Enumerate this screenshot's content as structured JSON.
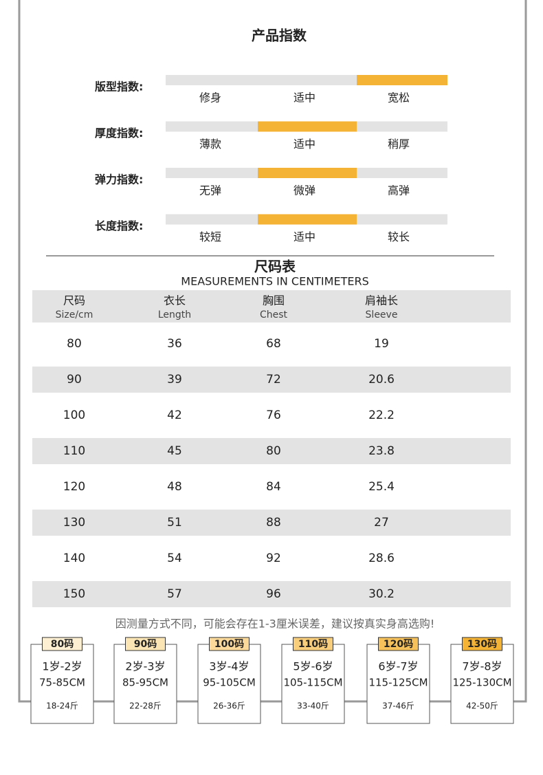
{
  "header": {
    "title": "产品指数"
  },
  "indices": [
    {
      "label": "版型指数:",
      "options": [
        "修身",
        "适中",
        "宽松"
      ],
      "selected": 2
    },
    {
      "label": "厚度指数:",
      "options": [
        "薄款",
        "适中",
        "稍厚"
      ],
      "selected": 1
    },
    {
      "label": "弹力指数:",
      "options": [
        "无弹",
        "微弹",
        "高弹"
      ],
      "selected": 1
    },
    {
      "label": "长度指数:",
      "options": [
        "较短",
        "适中",
        "较长"
      ],
      "selected": 1
    }
  ],
  "size_table": {
    "title": "尺码表",
    "subtitle": "MEASUREMENTS IN CENTIMETERS",
    "columns": [
      {
        "zh": "尺码",
        "en": "Size/cm"
      },
      {
        "zh": "衣长",
        "en": "Length"
      },
      {
        "zh": "胸围",
        "en": "Chest"
      },
      {
        "zh": "肩袖长",
        "en": "Sleeve"
      }
    ],
    "rows": [
      [
        80,
        36,
        68,
        19
      ],
      [
        90,
        39,
        72,
        20.6
      ],
      [
        100,
        42,
        76,
        22.2
      ],
      [
        110,
        45,
        80,
        23.8
      ],
      [
        120,
        48,
        84,
        25.4
      ],
      [
        130,
        51,
        88,
        27
      ],
      [
        140,
        54,
        92,
        28.6
      ],
      [
        150,
        57,
        96,
        30.2
      ]
    ]
  },
  "note": "因测量方式不同，可能会存在1-3厘米误差，建议按真实身高选购!",
  "cards": [
    {
      "tag": "80码",
      "age": "1岁-2岁",
      "height": "75-85CM",
      "weight": "18-24斤"
    },
    {
      "tag": "90码",
      "age": "2岁-3岁",
      "height": "85-95CM",
      "weight": "22-28斤"
    },
    {
      "tag": "100码",
      "age": "3岁-4岁",
      "height": "95-105CM",
      "weight": "26-36斤"
    },
    {
      "tag": "110码",
      "age": "5岁-6岁",
      "height": "105-115CM",
      "weight": "33-40斤"
    },
    {
      "tag": "120码",
      "age": "6岁-7岁",
      "height": "115-125CM",
      "weight": "37-46斤"
    },
    {
      "tag": "130码",
      "age": "7岁-8岁",
      "height": "125-130CM",
      "weight": "42-50斤"
    }
  ]
}
